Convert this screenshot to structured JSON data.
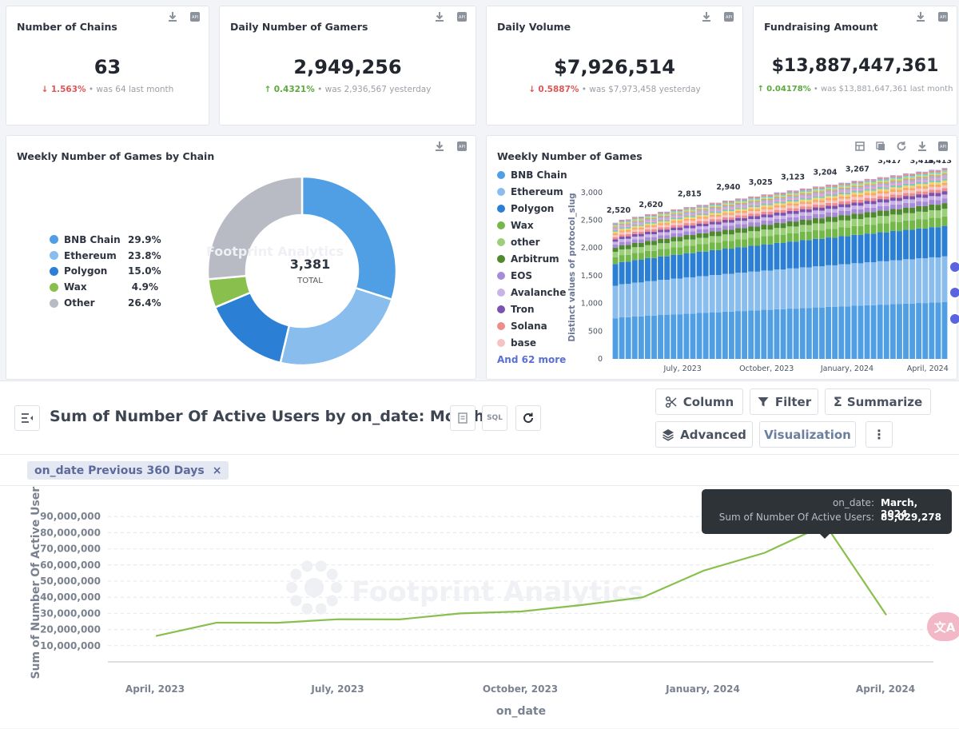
{
  "kpis": [
    {
      "title": "Number of Chains",
      "value": "63",
      "change": "1.563%",
      "direction": "down",
      "compare": " • was 64 last month"
    },
    {
      "title": "Daily Number of Gamers",
      "value": "2,949,256",
      "change": "0.4321%",
      "direction": "up",
      "compare": " • was 2,936,567 yesterday"
    },
    {
      "title": "Daily Volume",
      "value": "$7,926,514",
      "change": "0.5887%",
      "direction": "down",
      "compare": " • was $7,973,458 yesterday"
    },
    {
      "title": "Fundraising Amount",
      "value": "$13,887,447,361",
      "change": "0.04178%",
      "direction": "up",
      "compare": " • was $13,881,647,361 last month"
    }
  ],
  "watermark": "Footprint Analytics",
  "donut": {
    "title": "Weekly Number of Games by Chain",
    "total": "3,381",
    "total_label": "TOTAL",
    "chart_data": {
      "type": "pie",
      "categories": [
        "BNB Chain",
        "Ethereum",
        "Polygon",
        "Wax",
        "Other"
      ],
      "values": [
        29.9,
        23.8,
        15.0,
        4.9,
        26.4
      ],
      "labels": [
        "29.9%",
        "23.8%",
        "15.0%",
        "4.9%",
        "26.4%"
      ],
      "colors": [
        "#509ee3",
        "#88bdee",
        "#2b7fd4",
        "#88bf4d",
        "#b8bbc4"
      ]
    }
  },
  "bars": {
    "title": "Weekly Number of Games",
    "legend": [
      {
        "name": "BNB Chain",
        "color": "#509ee3"
      },
      {
        "name": "Ethereum",
        "color": "#88bdee"
      },
      {
        "name": "Polygon",
        "color": "#2b7fd4"
      },
      {
        "name": "Wax",
        "color": "#74b84a"
      },
      {
        "name": "other",
        "color": "#9ccf7a"
      },
      {
        "name": "Arbitrum",
        "color": "#4f8a2e"
      },
      {
        "name": "EOS",
        "color": "#a78bd6"
      },
      {
        "name": "Avalanche",
        "color": "#c9b3e6"
      },
      {
        "name": "Tron",
        "color": "#7b52b0"
      },
      {
        "name": "Solana",
        "color": "#ef8c8c"
      },
      {
        "name": "base",
        "color": "#f5c4c0"
      }
    ],
    "more": "And 62 more",
    "ylabel": "Distinct values of protocol_slug",
    "chart_data": {
      "type": "bar",
      "stacked": true,
      "yticks": [
        "0",
        "500",
        "1,000",
        "1,500",
        "2,000",
        "2,500",
        "3,000"
      ],
      "ylim": [
        0,
        3300
      ],
      "xticks": [
        "July, 2023",
        "October, 2023",
        "January, 2024",
        "April, 2024"
      ],
      "top_labels": [
        "2,520",
        "2,620",
        "2,815",
        "2,940",
        "3,025",
        "3,123",
        "3,204",
        "3,267",
        "3,417",
        "3,414",
        "3,413"
      ],
      "totals_start": 2450,
      "totals_end": 3413,
      "weeks": 52
    },
    "icons": [
      "table-icon",
      "copy-icon",
      "refresh-icon",
      "download-icon",
      "api-icon"
    ]
  },
  "query": {
    "title": "Sum of Number Of Active Users by on_date: Month",
    "sql_label": "SQL",
    "buttons": {
      "column": "Column",
      "filter": "Filter",
      "summarize": "Summarize",
      "advanced": "Advanced",
      "visualization": "Visualization"
    },
    "filter_tag": "on_date Previous 360 Days",
    "filter_close": "×",
    "tooltip": {
      "k1": "on_date:",
      "v1": "March, 2024",
      "k2": "Sum of Number Of Active Users:",
      "v2": "85,029,278"
    },
    "translate": "文A",
    "chart_data": {
      "type": "line",
      "xlabel": "on_date",
      "ylabel": "Sum of Number Of Active Users",
      "x": [
        "2023-04",
        "2023-05",
        "2023-06",
        "2023-07",
        "2023-08",
        "2023-09",
        "2023-10",
        "2023-11",
        "2023-12",
        "2024-01",
        "2024-02",
        "2024-03",
        "2024-04"
      ],
      "values": [
        16000000,
        24300000,
        24200000,
        26400000,
        26300000,
        30000000,
        31200000,
        35200000,
        40000000,
        56500000,
        67500000,
        85029278,
        29000000
      ],
      "yticks": [
        "10,000,000",
        "20,000,000",
        "30,000,000",
        "40,000,000",
        "50,000,000",
        "60,000,000",
        "70,000,000",
        "80,000,000",
        "90,000,000"
      ],
      "xticks": [
        "April, 2023",
        "July, 2023",
        "October, 2023",
        "January, 2024",
        "April, 2024"
      ],
      "highlight_index": 11,
      "color": "#88bf4d"
    }
  }
}
